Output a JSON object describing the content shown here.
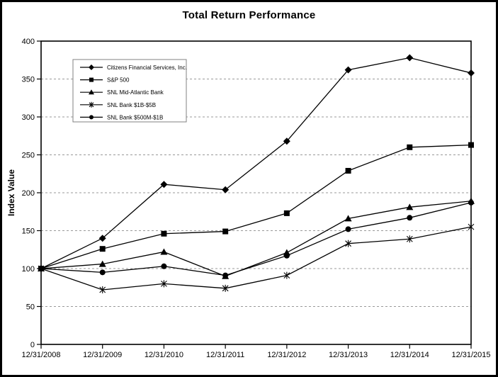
{
  "chart_data": {
    "type": "line",
    "title": "Total Return Performance",
    "ylabel": "Index Value",
    "xlabel": "",
    "categories": [
      "12/31/2008",
      "12/31/2009",
      "12/31/2010",
      "12/31/2011",
      "12/31/2012",
      "12/31/2013",
      "12/31/2014",
      "12/31/2015"
    ],
    "series": [
      {
        "name": "Citizens Financial Services, Inc.",
        "marker": "diamond",
        "values": [
          100,
          140,
          211,
          204,
          268,
          362,
          378,
          358
        ]
      },
      {
        "name": "S&P 500",
        "marker": "square",
        "values": [
          100,
          126,
          146,
          149,
          173,
          229,
          260,
          263
        ]
      },
      {
        "name": "SNL Mid-Atlantic Bank",
        "marker": "triangle",
        "values": [
          100,
          106,
          122,
          90,
          121,
          166,
          181,
          189
        ]
      },
      {
        "name": "SNL Bank $1B-$5B",
        "marker": "star",
        "values": [
          100,
          72,
          80,
          74,
          91,
          133,
          139,
          155
        ]
      },
      {
        "name": "SNL Bank $500M-$1B",
        "marker": "circle",
        "values": [
          100,
          95,
          103,
          91,
          117,
          152,
          167,
          187
        ]
      }
    ],
    "ylim": [
      0,
      400
    ],
    "ytick_step": 50,
    "grid": "horizontal-dashed",
    "legend_position": "top-left",
    "colors": {
      "line": "#000000",
      "grid": "#999999",
      "border": "#000000",
      "legend_border": "#808080"
    }
  }
}
